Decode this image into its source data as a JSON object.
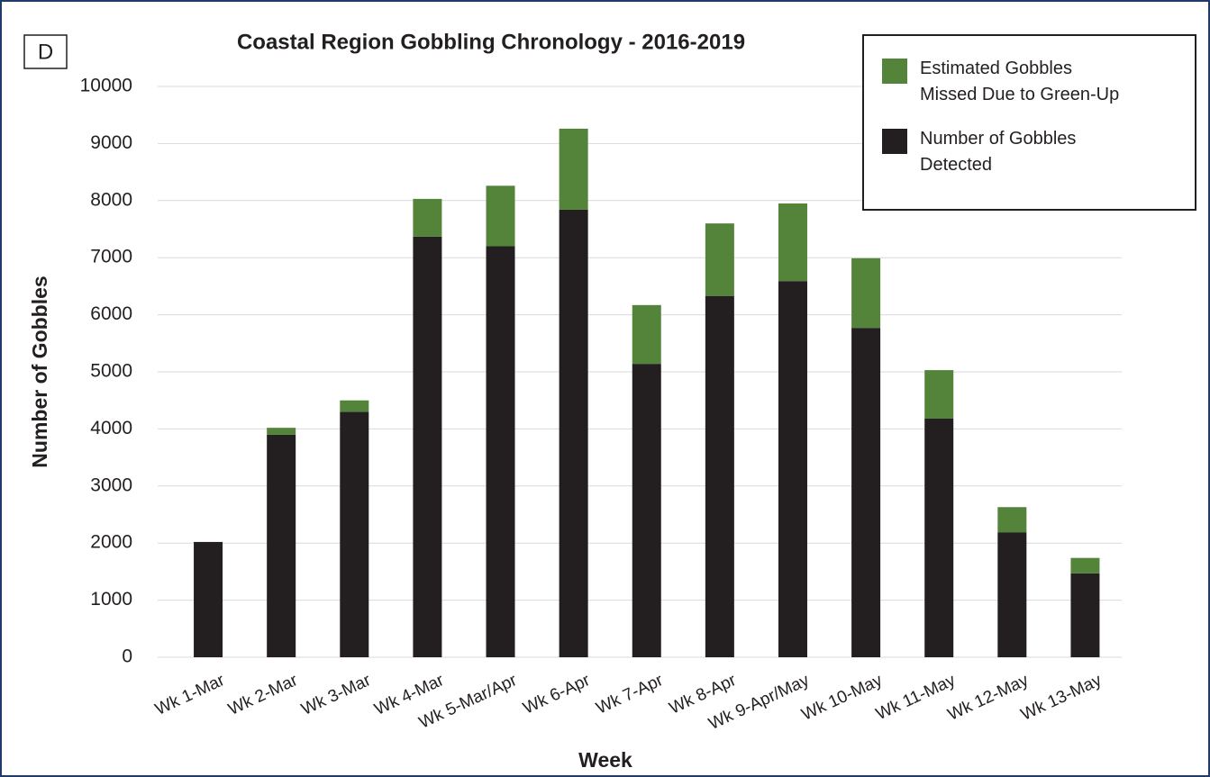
{
  "panel_label": "D",
  "chart_data": {
    "type": "stacked_bar",
    "title": "Coastal Region Gobbling Chronology - 2016-2019",
    "x_label": "Week",
    "y_label": "Number of Gobbles",
    "categories": [
      "Wk 1-Mar",
      "Wk 2-Mar",
      "Wk 3-Mar",
      "Wk 4-Mar",
      "Wk 5-Mar/Apr",
      "Wk 6-Apr",
      "Wk 7-Apr",
      "Wk 8-Apr",
      "Wk 9-Apr/May",
      "Wk 10-May",
      "Wk 11-May",
      "Wk 12-May",
      "Wk 13-May"
    ],
    "series": [
      {
        "name": "Number of Gobbles Detected",
        "color": "#231f20",
        "values": [
          2020,
          3900,
          4300,
          7370,
          7200,
          7840,
          5140,
          6330,
          6590,
          5770,
          4180,
          2190,
          1470
        ]
      },
      {
        "name": "Estimated Gobbles Missed Due to Green-Up",
        "color": "#53843a",
        "values": [
          0,
          120,
          200,
          660,
          1060,
          1420,
          1030,
          1270,
          1360,
          1220,
          850,
          440,
          270
        ]
      }
    ],
    "ylim": [
      0,
      10000
    ],
    "yticks": [
      0,
      1000,
      2000,
      3000,
      4000,
      5000,
      6000,
      7000,
      8000,
      9000,
      10000
    ],
    "grid": true,
    "legend": "top-right"
  }
}
